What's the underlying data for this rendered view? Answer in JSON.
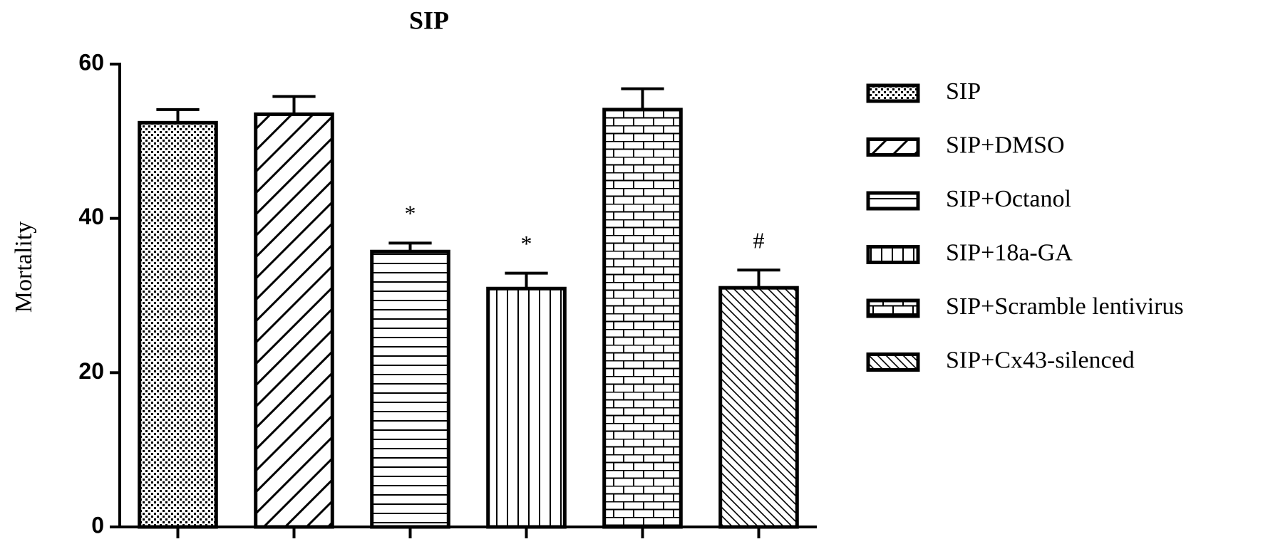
{
  "chart_data": {
    "type": "bar",
    "title": "SIP",
    "y_label": "Mortality",
    "categories": [
      "SIP",
      "SIP+DMSO",
      "SIP+Octanol",
      "SIP+18a-GA",
      "SIP+Scramble lentivirus",
      "SIP+Cx43-silenced"
    ],
    "values": [
      52.4,
      53.5,
      35.7,
      30.9,
      54.1,
      31.0
    ],
    "errors": [
      1.7,
      2.3,
      1.1,
      2.0,
      2.7,
      2.3
    ],
    "annotations": [
      null,
      null,
      "*",
      "*",
      null,
      "#"
    ],
    "patterns": [
      "dots",
      "diagonal-up",
      "horizontal",
      "vertical",
      "bricks",
      "diagonal-down"
    ],
    "color": "#000000",
    "ylim": [
      0,
      60
    ],
    "yticks": [
      0,
      20,
      40,
      60
    ],
    "grid": false
  }
}
